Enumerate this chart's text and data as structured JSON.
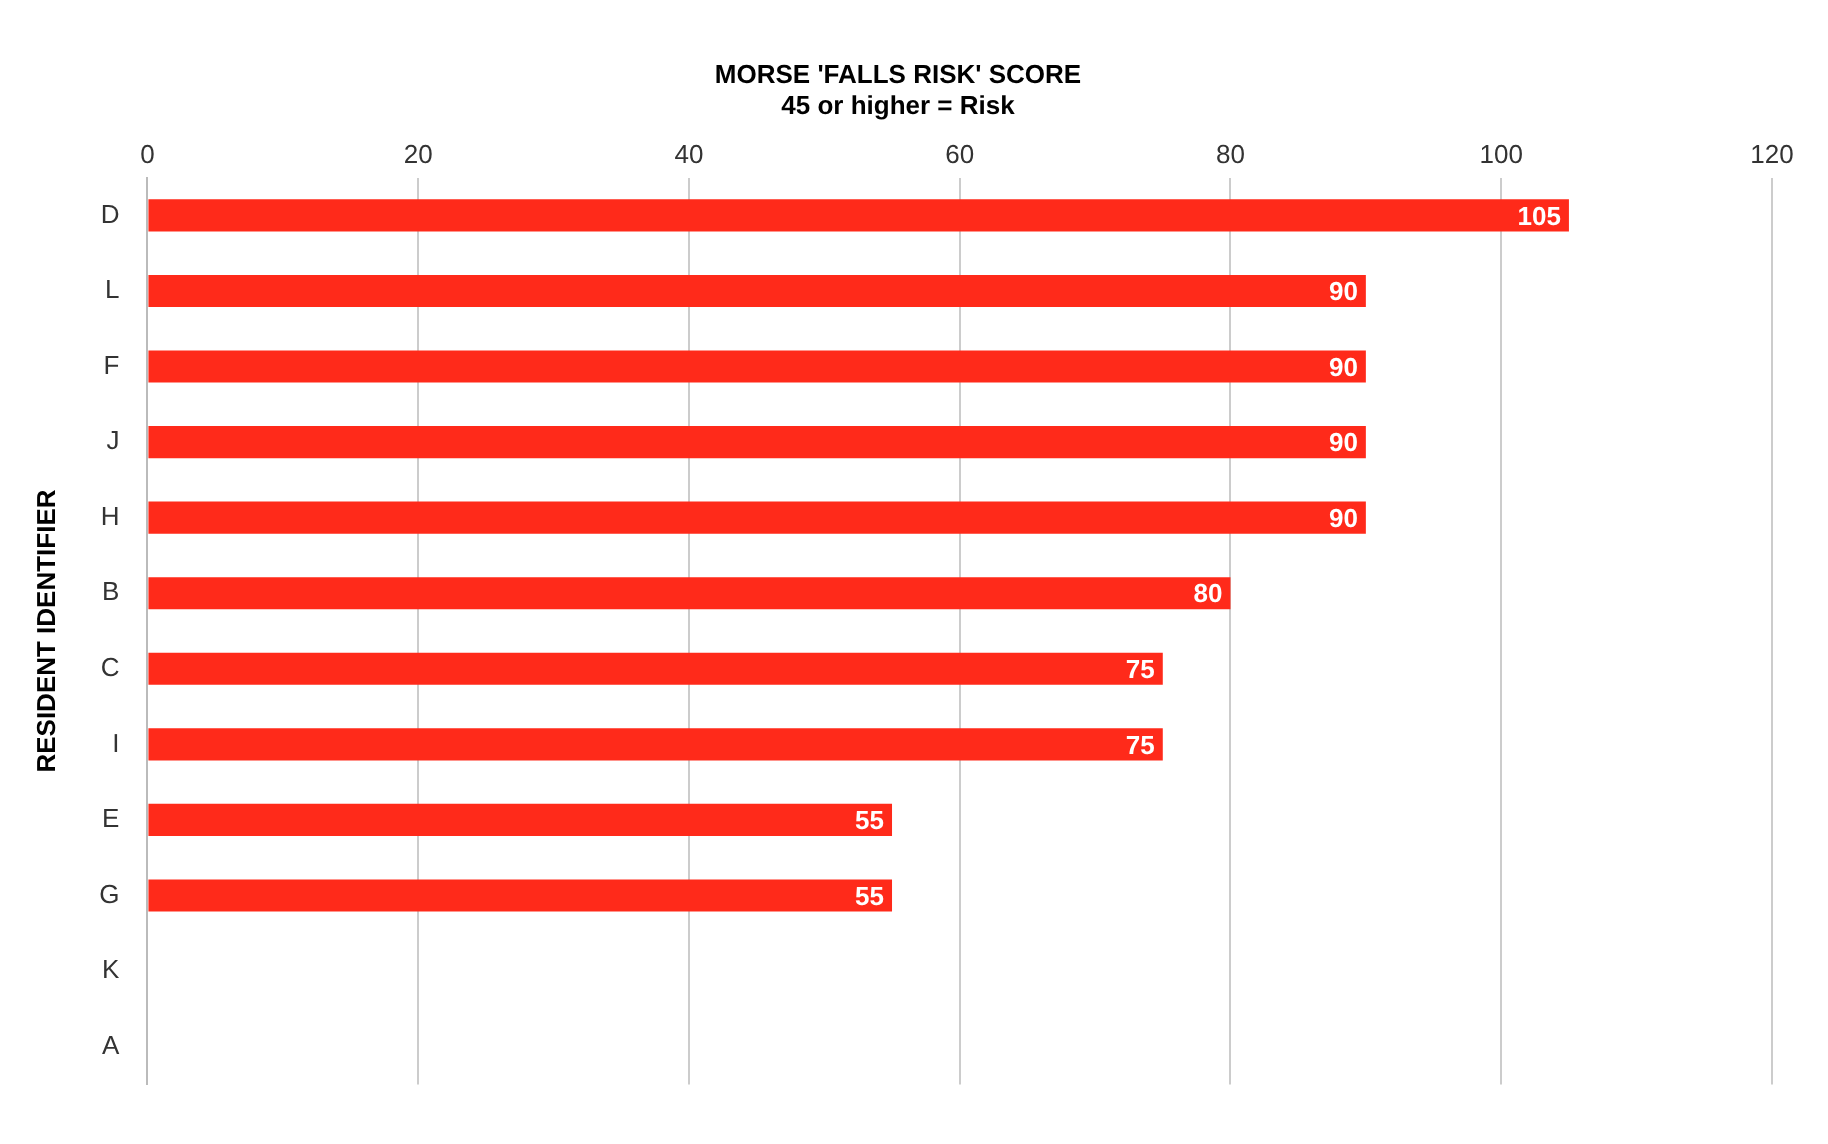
{
  "chart_data": {
    "type": "bar",
    "orientation": "horizontal",
    "title": "MORSE 'FALLS RISK' SCORE",
    "subtitle": "45 or higher = Risk",
    "ylabel": "RESIDENT IDENTIFIER",
    "categories": [
      "D",
      "L",
      "F",
      "J",
      "H",
      "B",
      "C",
      "I",
      "E",
      "G",
      "K",
      "A"
    ],
    "values": [
      105,
      90,
      90,
      90,
      90,
      80,
      75,
      75,
      55,
      55,
      null,
      null
    ],
    "color": "#ff2a1a",
    "xlim": [
      0,
      120
    ],
    "xticks": [
      0,
      20,
      40,
      60,
      80,
      100,
      120
    ],
    "grid": "x",
    "data_labels": true,
    "legend": false
  }
}
